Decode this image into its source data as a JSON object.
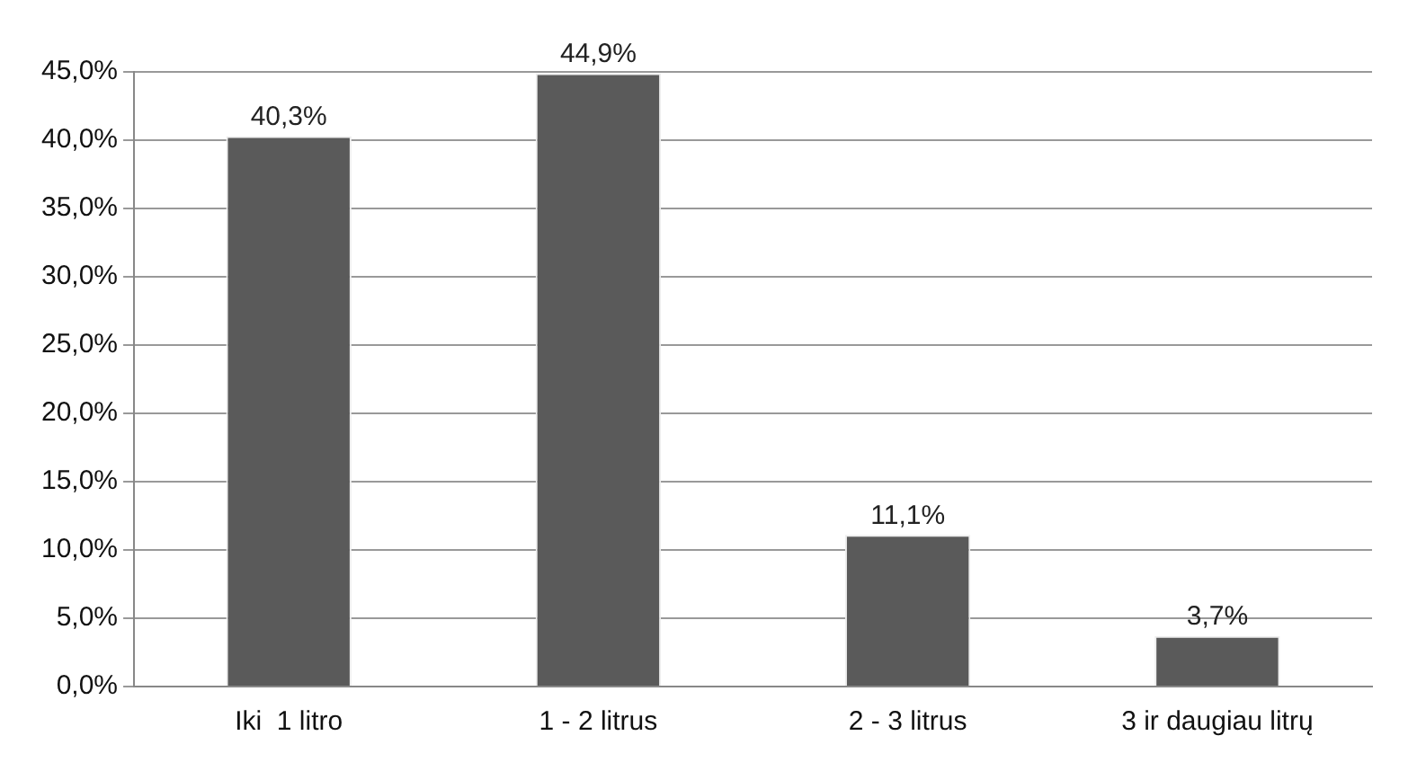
{
  "chart_data": {
    "type": "bar",
    "categories": [
      "Iki  1 litro",
      "1 - 2 litrus",
      "2 - 3 litrus",
      "3 ir daugiau litrų"
    ],
    "values": [
      40.3,
      44.9,
      11.1,
      3.7
    ],
    "value_labels": [
      "40,3%",
      "44,9%",
      "11,1%",
      "3,7%"
    ],
    "color": "#5a5a5a",
    "ylim": [
      0,
      45
    ],
    "yticks": [
      {
        "value": 0,
        "label": "0,0%"
      },
      {
        "value": 5,
        "label": "5,0%"
      },
      {
        "value": 10,
        "label": "10,0%"
      },
      {
        "value": 15,
        "label": "15,0%"
      },
      {
        "value": 20,
        "label": "20,0%"
      },
      {
        "value": 25,
        "label": "25,0%"
      },
      {
        "value": 30,
        "label": "30,0%"
      },
      {
        "value": 35,
        "label": "35,0%"
      },
      {
        "value": 40,
        "label": "40,0%"
      },
      {
        "value": 45,
        "label": "45,0%"
      }
    ],
    "grid": "y"
  }
}
